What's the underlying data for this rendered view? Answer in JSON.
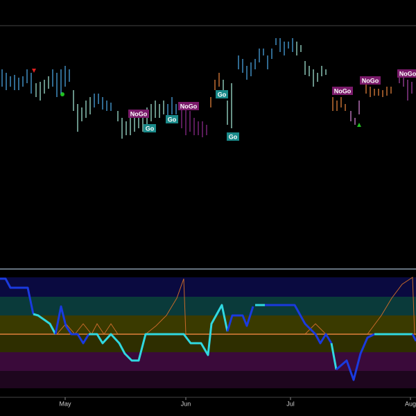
{
  "chart_data": [
    {
      "type": "ohlc",
      "xlim": [
        0,
        600
      ],
      "ylim": [
        0,
        347
      ],
      "series": [
        {
          "color": "#4aa3df",
          "x": [
            3,
            9,
            15,
            21,
            27,
            33,
            39,
            45
          ],
          "high": [
            285,
            280,
            275,
            277,
            273,
            275,
            285,
            280
          ],
          "low": [
            260,
            255,
            260,
            255,
            255,
            260,
            265,
            250
          ]
        },
        {
          "color": "#9fe0d0",
          "x": [
            52,
            58,
            64,
            70
          ],
          "high": [
            265,
            267,
            270,
            275
          ],
          "low": [
            245,
            240,
            250,
            257
          ]
        },
        {
          "color": "#4aa3df",
          "x": [
            76,
            82,
            88,
            94,
            100
          ],
          "high": [
            285,
            280,
            285,
            290,
            285
          ],
          "low": [
            260,
            245,
            250,
            260,
            267
          ]
        },
        {
          "color": "#9fe0d0",
          "x": [
            106,
            112,
            118,
            124,
            130
          ],
          "high": [
            255,
            235,
            230,
            240,
            245
          ],
          "low": [
            225,
            195,
            210,
            215,
            220
          ]
        },
        {
          "color": "#4aa3df",
          "x": [
            136,
            142,
            148,
            154,
            160
          ],
          "high": [
            250,
            250,
            245,
            240,
            237
          ],
          "low": [
            230,
            235,
            227,
            225,
            225
          ]
        },
        {
          "color": "#9fe0d0",
          "x": [
            170,
            176,
            182,
            188,
            194,
            200,
            206,
            212,
            218,
            224,
            230,
            236
          ],
          "high": [
            225,
            215,
            210,
            215,
            220,
            225,
            220,
            230,
            235,
            240,
            235,
            240
          ],
          "low": [
            210,
            185,
            190,
            190,
            195,
            200,
            195,
            205,
            210,
            215,
            215,
            220
          ]
        },
        {
          "color": "#4aa3df",
          "x": [
            242,
            248,
            254
          ],
          "high": [
            235,
            245,
            235
          ],
          "low": [
            215,
            220,
            220
          ]
        },
        {
          "color": "#8a2a8a",
          "x": [
            262,
            268,
            274,
            280,
            286,
            292,
            298
          ],
          "high": [
            235,
            235,
            225,
            215,
            210,
            210,
            205
          ],
          "low": [
            200,
            190,
            195,
            190,
            190,
            187,
            190
          ]
        },
        {
          "color": "#e0803a",
          "x": [
            304,
            310,
            316
          ],
          "high": [
            245,
            270,
            280
          ],
          "low": [
            230,
            255,
            260
          ]
        },
        {
          "color": "#9fe0d0",
          "x": [
            322,
            328,
            334
          ],
          "high": [
            270,
            240,
            265
          ],
          "low": [
            255,
            205,
            200
          ]
        },
        {
          "color": "#4aa3df",
          "x": [
            344,
            350,
            356,
            362,
            368,
            374,
            380,
            386,
            392,
            398,
            404,
            410,
            416,
            422
          ],
          "high": [
            305,
            300,
            290,
            295,
            300,
            315,
            315,
            305,
            315,
            330,
            330,
            325,
            325,
            330
          ],
          "low": [
            285,
            280,
            270,
            275,
            285,
            295,
            305,
            285,
            300,
            320,
            310,
            305,
            315,
            310
          ]
        },
        {
          "color": "#9fe0d0",
          "x": [
            428,
            434,
            440,
            446,
            452,
            458,
            464,
            470
          ],
          "high": [
            325,
            320,
            297,
            290,
            285,
            280,
            290,
            285
          ],
          "low": [
            305,
            310,
            277,
            275,
            260,
            267,
            275,
            277
          ]
        },
        {
          "color": "#e0803a",
          "x": [
            480,
            486,
            492,
            498
          ],
          "high": [
            245,
            240,
            245,
            235
          ],
          "low": [
            225,
            225,
            230,
            225
          ]
        },
        {
          "color": "#d080d0",
          "x": [
            506,
            512,
            518
          ],
          "high": [
            225,
            215,
            240
          ],
          "low": [
            210,
            205,
            220
          ]
        },
        {
          "color": "#e0803a",
          "x": [
            528,
            534,
            540,
            546,
            552,
            558,
            564
          ],
          "high": [
            265,
            260,
            257,
            257,
            255,
            260,
            260
          ],
          "low": [
            250,
            245,
            247,
            247,
            245,
            247,
            250
          ]
        },
        {
          "color": "#a040a0",
          "x": [
            576,
            582,
            588,
            594
          ],
          "high": [
            285,
            280,
            270,
            267
          ],
          "low": [
            265,
            260,
            240,
            250
          ]
        }
      ],
      "annotations": [
        {
          "text": "NoGo",
          "x": 200,
          "y": 221
        },
        {
          "text": "Go",
          "x": 216,
          "y": 200
        },
        {
          "text": "Go",
          "x": 248,
          "y": 213
        },
        {
          "text": "NoGo",
          "x": 272,
          "y": 232
        },
        {
          "text": "Go",
          "x": 320,
          "y": 249
        },
        {
          "text": "Go",
          "x": 336,
          "y": 188
        },
        {
          "text": "NoGo",
          "x": 494,
          "y": 254
        },
        {
          "text": "NoGo",
          "x": 534,
          "y": 269
        },
        {
          "text": "NoGo",
          "x": 588,
          "y": 279
        }
      ]
    },
    {
      "type": "line",
      "xlim": [
        0,
        600
      ],
      "ylim": [
        -93,
        93
      ],
      "xticks": [
        {
          "value": 94,
          "label": "May"
        },
        {
          "value": 268,
          "label": "Jun"
        },
        {
          "value": 419,
          "label": "Jul"
        },
        {
          "value": 592,
          "label": "Aug"
        }
      ],
      "series": [
        {
          "color": "#1a3adf",
          "x": [
            0,
            8,
            15,
            40,
            48
          ],
          "values": [
            80,
            80,
            67,
            67,
            29
          ]
        },
        {
          "color": "#30d8e0",
          "x": [
            48,
            55,
            65,
            72,
            80
          ],
          "values": [
            29,
            27,
            20,
            15,
            0
          ]
        },
        {
          "color": "#1a3adf",
          "x": [
            80,
            88,
            95,
            103,
            112,
            120,
            128
          ],
          "values": [
            0,
            40,
            12,
            0,
            0,
            -13,
            0
          ]
        },
        {
          "color": "#30d8e0",
          "x": [
            128,
            140,
            148,
            160,
            172,
            180,
            190,
            200,
            210,
            265,
            275,
            290,
            300,
            305,
            320,
            328
          ],
          "values": [
            0,
            0,
            -13,
            0,
            -13,
            -28,
            -38,
            -38,
            0,
            0,
            -13,
            -13,
            -30,
            15,
            42,
            4
          ]
        },
        {
          "color": "#1a3adf",
          "x": [
            328,
            335,
            350,
            356,
            365
          ],
          "values": [
            4,
            27,
            27,
            12,
            40
          ]
        },
        {
          "color": "#30d8e0",
          "x": [
            368,
            382
          ],
          "values": [
            42,
            42
          ]
        },
        {
          "color": "#1a3adf",
          "x": [
            382,
            425,
            440,
            455,
            462,
            470,
            478
          ],
          "values": [
            42,
            42,
            15,
            0,
            -13,
            0,
            -13
          ]
        },
        {
          "color": "#30d8e0",
          "x": [
            478,
            485
          ],
          "values": [
            -13,
            -51
          ]
        },
        {
          "color": "#1a3adf",
          "x": [
            485,
            500,
            510,
            520,
            530,
            540
          ],
          "values": [
            -51,
            -38,
            -66,
            -28,
            -5,
            0
          ]
        },
        {
          "color": "#30d8e0",
          "x": [
            540,
            595
          ],
          "values": [
            0,
            0
          ]
        },
        {
          "color": "#1a3adf",
          "x": [
            595,
            600
          ],
          "values": [
            0,
            -10
          ]
        }
      ]
    }
  ]
}
